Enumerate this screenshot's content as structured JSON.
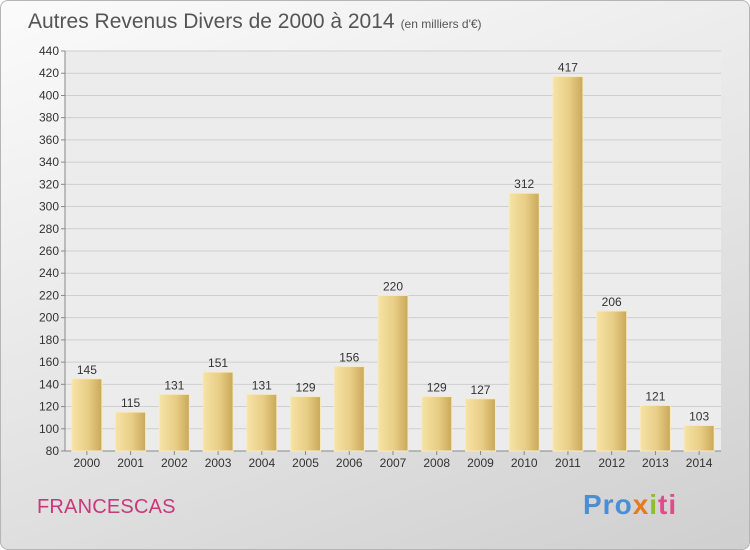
{
  "chart_data": {
    "type": "bar",
    "title": "Autres Revenus Divers de 2000 à 2014",
    "subtitle": "(en milliers d'€)",
    "categories": [
      "2000",
      "2001",
      "2002",
      "2003",
      "2004",
      "2005",
      "2006",
      "2007",
      "2008",
      "2009",
      "2010",
      "2011",
      "2012",
      "2013",
      "2014"
    ],
    "values": [
      145,
      115,
      131,
      151,
      131,
      129,
      156,
      220,
      129,
      127,
      312,
      417,
      206,
      121,
      103
    ],
    "ylim": [
      80,
      440
    ],
    "yticks": [
      80,
      100,
      120,
      140,
      160,
      180,
      200,
      220,
      240,
      260,
      280,
      300,
      320,
      340,
      360,
      380,
      400,
      420,
      440
    ],
    "grid": true,
    "bar_color": "#e8cd85"
  },
  "footer": {
    "commune": "FRANCESCAS",
    "logo_parts": [
      "Pro",
      "x",
      "i",
      "ti"
    ]
  }
}
